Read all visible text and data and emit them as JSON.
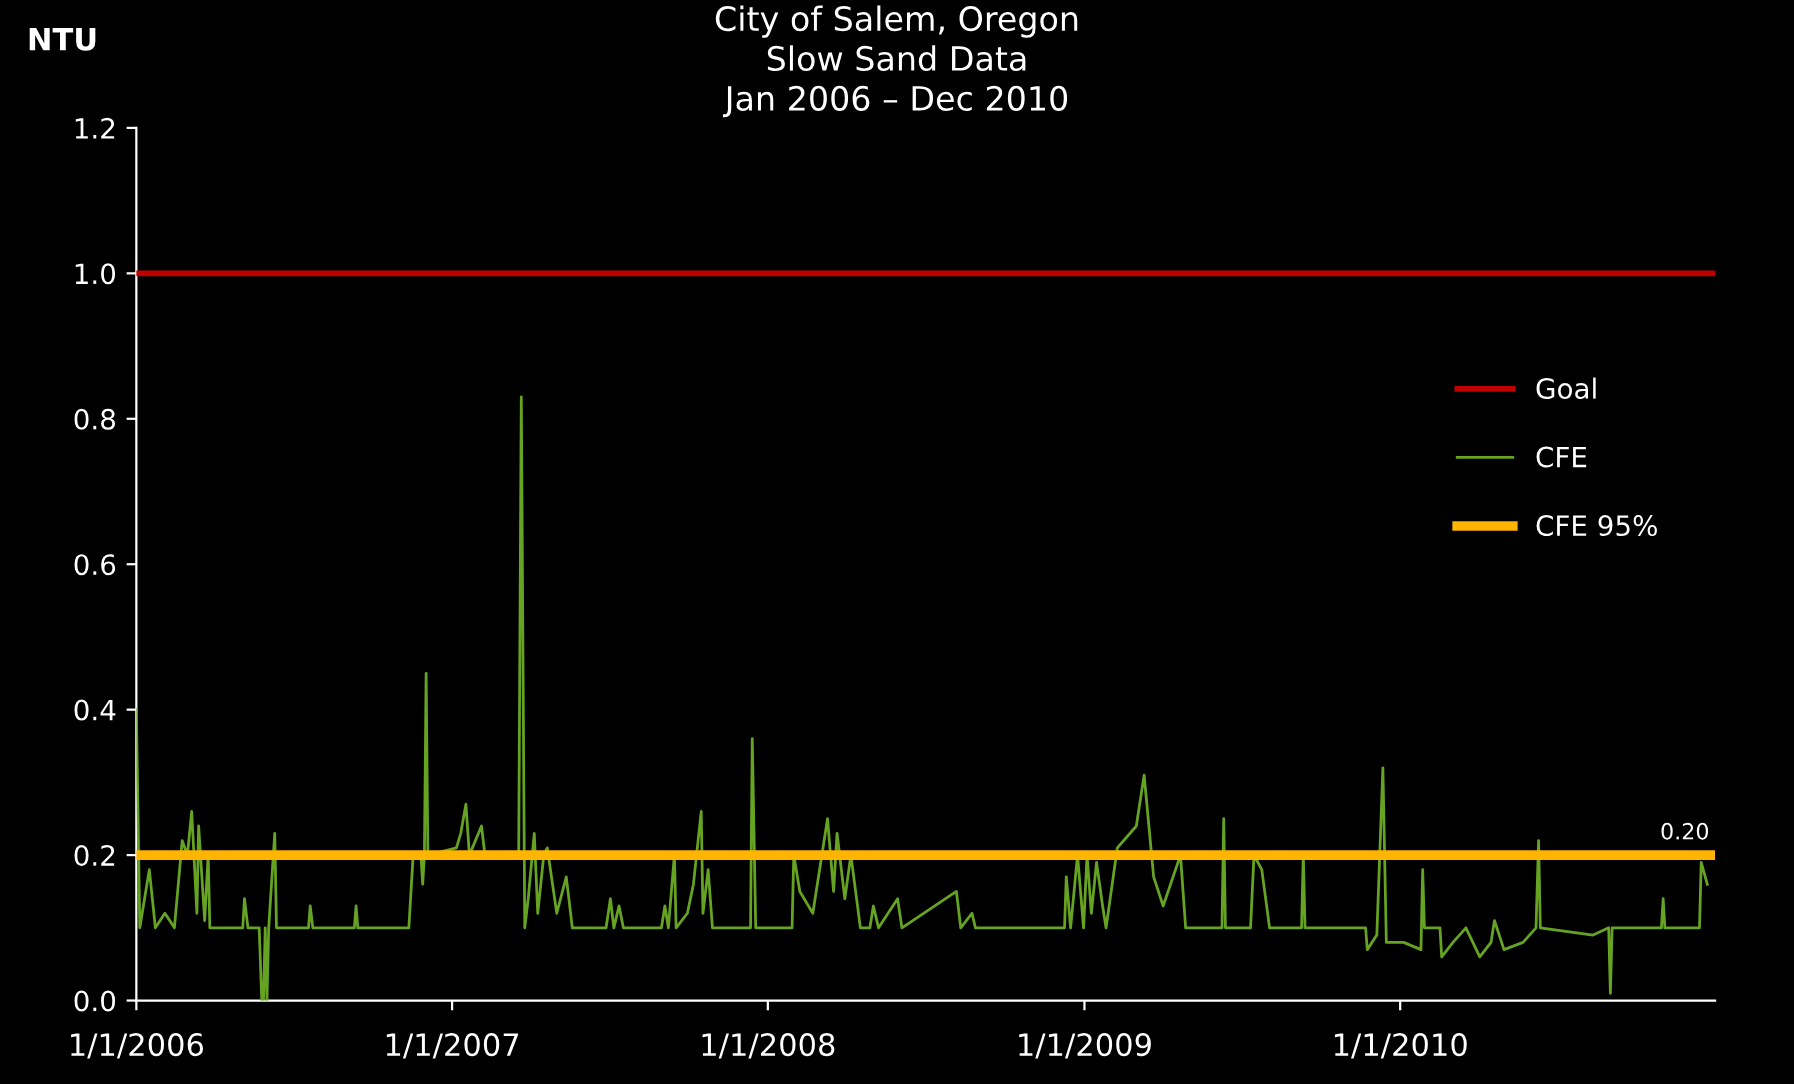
{
  "chart_data": {
    "type": "line",
    "title": "City of Salem, Oregon\nSlow Sand Data\nJan 2006 – Dec 2010",
    "ylabel": "NTU",
    "xlim": [
      "2006-01-01",
      "2010-12-31"
    ],
    "xticks": [
      {
        "value": "2006-01-01",
        "label": "1/1/2006"
      },
      {
        "value": "2007-01-01",
        "label": "1/1/2007"
      },
      {
        "value": "2008-01-01",
        "label": "1/1/2008"
      },
      {
        "value": "2009-01-01",
        "label": "1/1/2009"
      },
      {
        "value": "2010-01-01",
        "label": "1/1/2010"
      }
    ],
    "ylim": [
      0,
      1.2
    ],
    "yticks": [
      {
        "value": 0,
        "label": "0.0"
      },
      0.2,
      0.4,
      0.6,
      0.8,
      {
        "value": 1,
        "label": "1.0"
      },
      1.2
    ],
    "grid": false,
    "legend": "right",
    "series": [
      {
        "name": "Goal",
        "color": "#c00000",
        "x": [
          "2006-01-01",
          "2010-12-31"
        ],
        "values": [
          1.0,
          1.0
        ]
      },
      {
        "name": "CFE",
        "color": "#66a322",
        "x": [
          "2006-01-01",
          "2006-01-05",
          "2006-01-16",
          "2006-01-23",
          "2006-02-03",
          "2006-02-14",
          "2006-02-23",
          "2006-03-01",
          "2006-03-06",
          "2006-03-12",
          "2006-03-14",
          "2006-03-21",
          "2006-03-25",
          "2006-03-27",
          "2006-05-04",
          "2006-05-06",
          "2006-05-10",
          "2006-05-23",
          "2006-05-26",
          "2006-05-28",
          "2006-05-30",
          "2006-06-01",
          "2006-06-03",
          "2006-06-10",
          "2006-06-12",
          "2006-07-19",
          "2006-07-21",
          "2006-07-24",
          "2006-09-10",
          "2006-09-12",
          "2006-09-14",
          "2006-11-12",
          "2006-11-17",
          "2006-11-26",
          "2006-11-28",
          "2006-11-30",
          "2006-12-02",
          "2006-12-04",
          "2007-01-06",
          "2007-01-11",
          "2007-01-17",
          "2007-01-21",
          "2007-02-04",
          "2007-02-08",
          "2007-03-19",
          "2007-03-22",
          "2007-03-26",
          "2007-03-30",
          "2007-04-06",
          "2007-04-10",
          "2007-04-17",
          "2007-04-21",
          "2007-05-02",
          "2007-05-13",
          "2007-05-20",
          "2007-06-28",
          "2007-07-03",
          "2007-07-07",
          "2007-07-13",
          "2007-07-18",
          "2007-08-31",
          "2007-09-04",
          "2007-09-08",
          "2007-09-15",
          "2007-09-17",
          "2007-09-30",
          "2007-10-07",
          "2007-10-16",
          "2007-10-18",
          "2007-10-24",
          "2007-10-29",
          "2007-12-12",
          "2007-12-14",
          "2007-12-18",
          "2008-01-29",
          "2008-01-31",
          "2008-02-07",
          "2008-02-22",
          "2008-03-10",
          "2008-03-17",
          "2008-03-21",
          "2008-03-30",
          "2008-04-06",
          "2008-04-17",
          "2008-04-28",
          "2008-05-02",
          "2008-05-08",
          "2008-05-30",
          "2008-06-04",
          "2008-08-06",
          "2008-08-11",
          "2008-08-24",
          "2008-08-28",
          "2008-12-09",
          "2008-12-11",
          "2008-12-16",
          "2008-12-24",
          "2008-12-31",
          "2009-01-04",
          "2009-01-09",
          "2009-01-15",
          "2009-01-22",
          "2009-01-26",
          "2009-02-08",
          "2009-03-02",
          "2009-03-11",
          "2009-03-22",
          "2009-04-02",
          "2009-04-22",
          "2009-04-28",
          "2009-06-09",
          "2009-06-11",
          "2009-06-13",
          "2009-07-12",
          "2009-07-16",
          "2009-07-25",
          "2009-08-03",
          "2009-09-09",
          "2009-09-11",
          "2009-09-13",
          "2009-11-22",
          "2009-11-24",
          "2009-12-05",
          "2009-12-12",
          "2009-12-16",
          "2010-01-05",
          "2010-01-25",
          "2010-01-27",
          "2010-01-29",
          "2010-02-16",
          "2010-02-18",
          "2010-03-03",
          "2010-03-18",
          "2010-04-03",
          "2010-04-16",
          "2010-04-20",
          "2010-05-01",
          "2010-05-23",
          "2010-06-07",
          "2010-06-10",
          "2010-06-12",
          "2010-08-12",
          "2010-08-30",
          "2010-09-01",
          "2010-09-03",
          "2010-10-30",
          "2010-11-01",
          "2010-11-03",
          "2010-12-13",
          "2010-12-15",
          "2010-12-22"
        ],
        "values": [
          0.4,
          0.1,
          0.18,
          0.1,
          0.12,
          0.1,
          0.22,
          0.2,
          0.26,
          0.12,
          0.24,
          0.11,
          0.2,
          0.1,
          0.1,
          0.14,
          0.1,
          0.1,
          0.0,
          0.0,
          0.1,
          0.0,
          0.1,
          0.23,
          0.1,
          0.1,
          0.13,
          0.1,
          0.1,
          0.13,
          0.1,
          0.1,
          0.2,
          0.2,
          0.16,
          0.2,
          0.45,
          0.2,
          0.21,
          0.23,
          0.27,
          0.2,
          0.24,
          0.2,
          0.2,
          0.83,
          0.1,
          0.14,
          0.23,
          0.12,
          0.2,
          0.21,
          0.12,
          0.17,
          0.1,
          0.1,
          0.14,
          0.1,
          0.13,
          0.1,
          0.1,
          0.13,
          0.1,
          0.2,
          0.1,
          0.12,
          0.16,
          0.26,
          0.12,
          0.18,
          0.1,
          0.1,
          0.36,
          0.1,
          0.1,
          0.2,
          0.15,
          0.12,
          0.25,
          0.15,
          0.23,
          0.14,
          0.2,
          0.1,
          0.1,
          0.13,
          0.1,
          0.14,
          0.1,
          0.15,
          0.1,
          0.12,
          0.1,
          0.1,
          0.17,
          0.1,
          0.2,
          0.1,
          0.2,
          0.12,
          0.19,
          0.13,
          0.1,
          0.21,
          0.24,
          0.31,
          0.17,
          0.13,
          0.2,
          0.1,
          0.1,
          0.25,
          0.1,
          0.1,
          0.2,
          0.18,
          0.1,
          0.1,
          0.2,
          0.1,
          0.1,
          0.07,
          0.09,
          0.32,
          0.08,
          0.08,
          0.07,
          0.18,
          0.1,
          0.1,
          0.06,
          0.08,
          0.1,
          0.06,
          0.08,
          0.11,
          0.07,
          0.08,
          0.1,
          0.22,
          0.1,
          0.09,
          0.1,
          0.01,
          0.1,
          0.1,
          0.14,
          0.1,
          0.1,
          0.19,
          0.16
        ]
      },
      {
        "name": "CFE 95%",
        "color": "#ffb400",
        "x": [
          "2006-01-01",
          "2010-12-31"
        ],
        "values": [
          0.2,
          0.2
        ],
        "value_labels": [
          null,
          "0.20"
        ]
      }
    ]
  }
}
